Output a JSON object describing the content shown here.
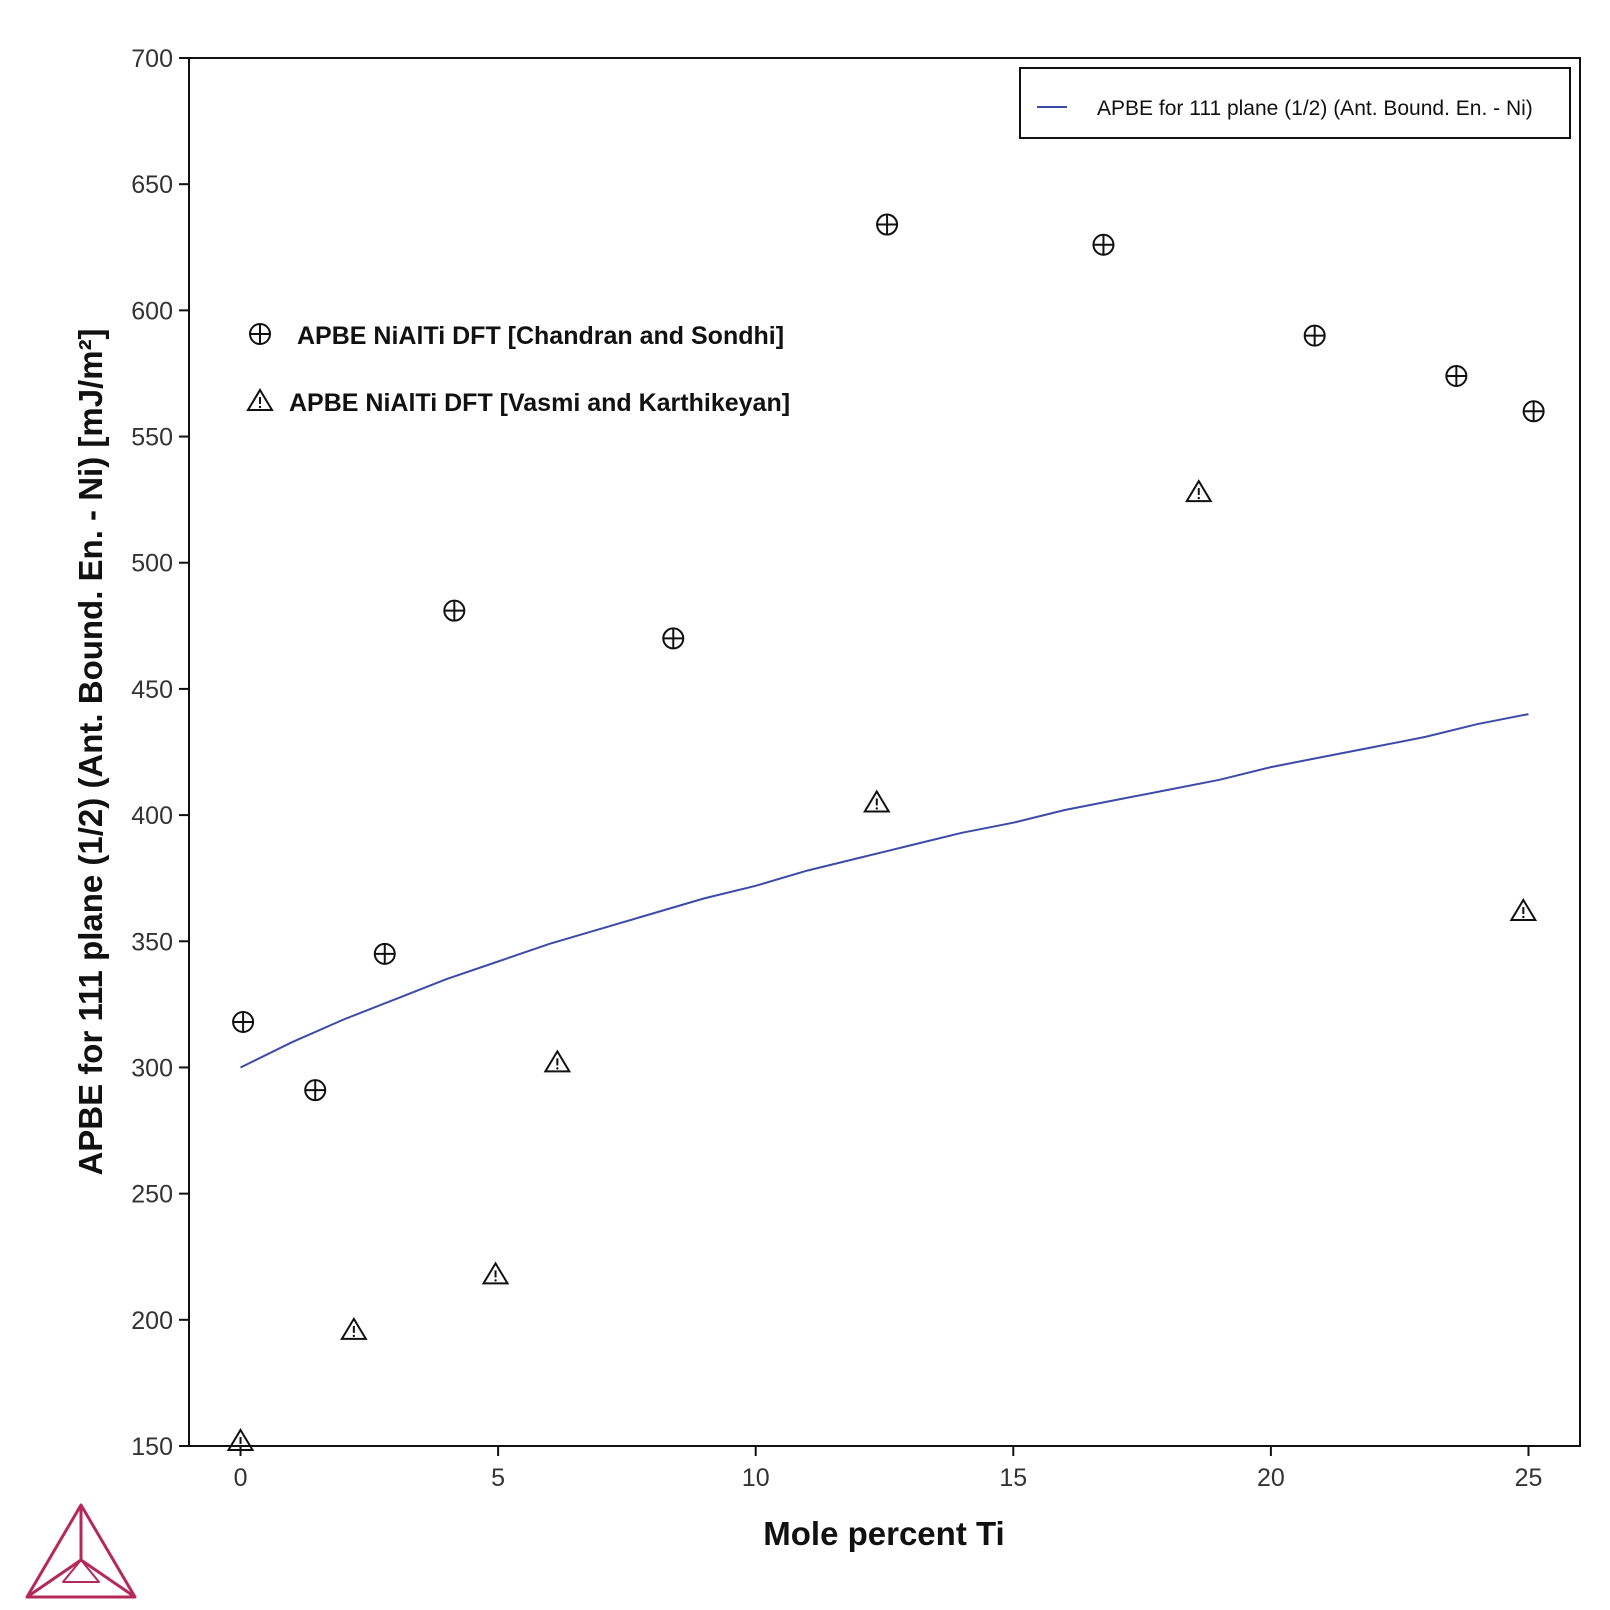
{
  "chart_data": {
    "type": "scatter",
    "xlabel": "Mole percent Ti",
    "ylabel": "APBE for 111 plane (1/2) (Ant. Bound. En. - Ni) [mJ/m²]",
    "xlim": [
      -1,
      26
    ],
    "ylim": [
      150,
      700
    ],
    "xticks": [
      0,
      5,
      10,
      15,
      20,
      25
    ],
    "yticks": [
      150,
      200,
      250,
      300,
      350,
      400,
      450,
      500,
      550,
      600,
      650,
      700
    ],
    "legend": {
      "position": "top-right",
      "entries": [
        "APBE for 111 plane (1/2) (Ant. Bound. En. - Ni)"
      ]
    },
    "series": [
      {
        "name": "APBE for 111 plane (1/2) (Ant. Bound. En. - Ni)",
        "kind": "line",
        "color": "#3b4ba8",
        "x": [
          0,
          1,
          2,
          3,
          4,
          5,
          6,
          7,
          8,
          9,
          10,
          11,
          12,
          13,
          14,
          15,
          16,
          17,
          18,
          19,
          20,
          21,
          22,
          23,
          24,
          25
        ],
        "y": [
          300,
          310,
          319,
          327,
          335,
          342,
          349,
          355,
          361,
          367,
          372,
          378,
          383,
          388,
          393,
          397,
          402,
          406,
          410,
          414,
          419,
          423,
          427,
          431,
          436,
          440
        ]
      },
      {
        "name": "APBE NiAlTi DFT [Chandran and Sondhi]",
        "kind": "scatter",
        "marker": "circle-plus",
        "x": [
          0.05,
          1.45,
          2.8,
          4.15,
          8.4,
          12.55,
          16.75,
          20.85,
          23.6,
          25.1
        ],
        "y": [
          318,
          291,
          345,
          481,
          470,
          634,
          626,
          590,
          574,
          560
        ]
      },
      {
        "name": "APBE NiAlTi DFT [Vasmi and Karthikeyan]",
        "kind": "scatter",
        "marker": "triangle",
        "x": [
          0.0,
          2.2,
          4.95,
          6.15,
          12.35,
          18.6,
          24.9
        ],
        "y": [
          152,
          196,
          218,
          302,
          405,
          528,
          362
        ]
      }
    ],
    "annotations": [
      "APBE NiAlTi DFT [Chandran and Sondhi]",
      "APBE NiAlTi DFT [Vasmi and Karthikeyan]"
    ]
  },
  "logo": {
    "name": "thermo-calc-logo",
    "color": "#b5285a"
  }
}
